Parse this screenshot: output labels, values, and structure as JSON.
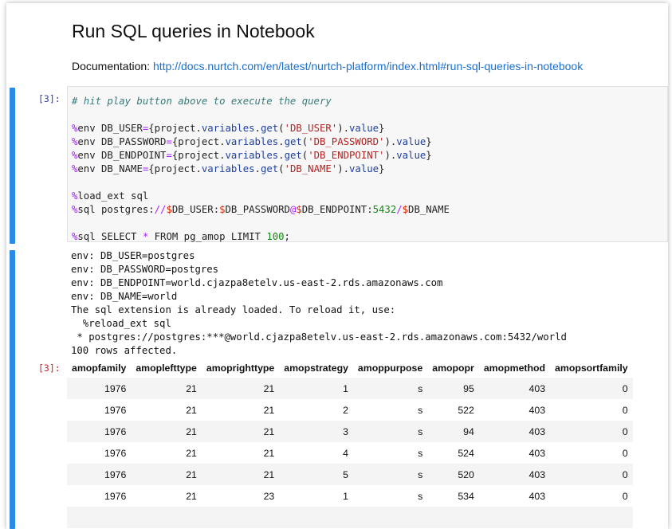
{
  "title": "Run SQL queries in Notebook",
  "doc_label": "Documentation: ",
  "doc_link": "http://docs.nurtch.com/en/latest/nurtch-platform/index.html#run-sql-queries-in-notebook",
  "input_prompt": "[3]:",
  "output_prompt": "[3]:",
  "code": {
    "comment": "# hit play button above to execute the query",
    "env_vars": [
      "DB_USER",
      "DB_PASSWORD",
      "DB_ENDPOINT",
      "DB_NAME"
    ],
    "load": "load_ext sql",
    "port": "5432",
    "limit": "100"
  },
  "output_lines": [
    "env: DB_USER=postgres",
    "env: DB_PASSWORD=postgres",
    "env: DB_ENDPOINT=world.cjazpa8etelv.us-east-2.rds.amazonaws.com",
    "env: DB_NAME=world",
    "The sql extension is already loaded. To reload it, use:",
    "  %reload_ext sql",
    " * postgres://postgres:***@world.cjazpa8etelv.us-east-2.rds.amazonaws.com:5432/world",
    "100 rows affected."
  ],
  "table": {
    "columns": [
      "amopfamily",
      "amoplefttype",
      "amoprighttype",
      "amopstrategy",
      "amoppurpose",
      "amopopr",
      "amopmethod",
      "amopsortfamily"
    ],
    "rows": [
      [
        "1976",
        "21",
        "21",
        "1",
        "s",
        "95",
        "403",
        "0"
      ],
      [
        "1976",
        "21",
        "21",
        "2",
        "s",
        "522",
        "403",
        "0"
      ],
      [
        "1976",
        "21",
        "21",
        "3",
        "s",
        "94",
        "403",
        "0"
      ],
      [
        "1976",
        "21",
        "21",
        "4",
        "s",
        "524",
        "403",
        "0"
      ],
      [
        "1976",
        "21",
        "21",
        "5",
        "s",
        "520",
        "403",
        "0"
      ],
      [
        "1976",
        "21",
        "23",
        "1",
        "s",
        "534",
        "403",
        "0"
      ],
      [
        "",
        "",
        "",
        "",
        "",
        "",
        "",
        ""
      ]
    ]
  },
  "colors": {
    "accent": "#2a8be6",
    "link": "#1a6fd1"
  }
}
